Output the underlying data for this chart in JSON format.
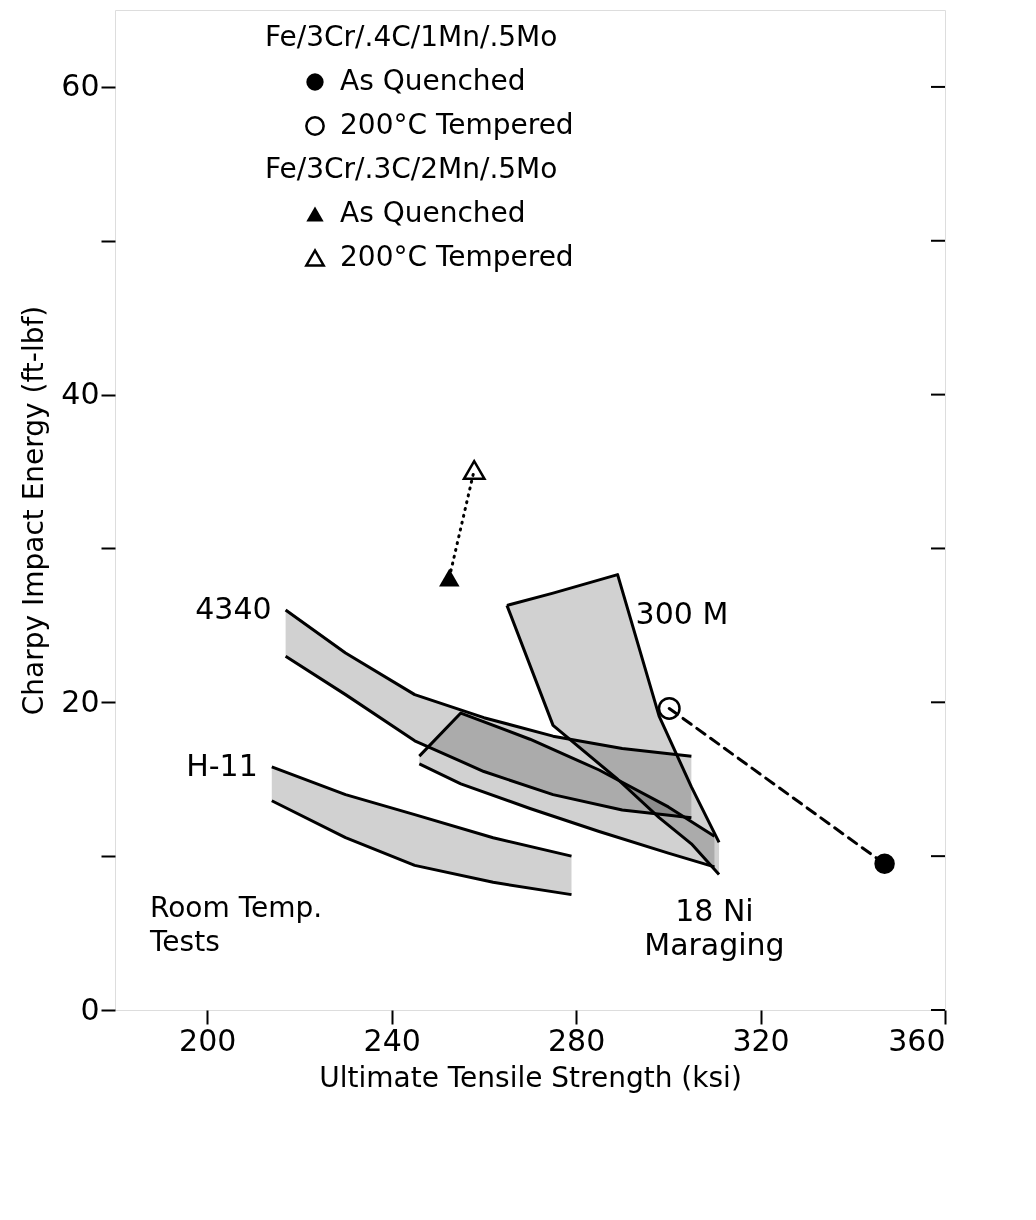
{
  "chart_data": {
    "type": "scatter",
    "xlabel": "Ultimate Tensile Strength (ksi)",
    "ylabel": "Charpy Impact Energy (ft-lbf)",
    "xlim": [
      180,
      360
    ],
    "ylim": [
      0,
      65
    ],
    "xticks": [
      200,
      240,
      280,
      320,
      360
    ],
    "yticks": [
      0,
      {
        "value": 10,
        "label": null
      },
      20,
      {
        "value": 30,
        "label": null
      },
      40,
      {
        "value": 50,
        "label": null
      },
      60
    ],
    "grid": false,
    "legend": "top",
    "annotations": [
      "Fe/3Cr/.4C/1Mn/.5Mo",
      "Fe/3Cr/.3C/2Mn/.5Mo",
      "Room Temp. Tests"
    ],
    "series": [
      {
        "name": "4340",
        "type": "line",
        "marker": "none",
        "color": "#000000",
        "x": [
          217,
          230,
          245,
          260,
          275,
          290,
          305
        ],
        "values": [
          26,
          23.2,
          20.5,
          19,
          17.8,
          17,
          16.5
        ],
        "upper": [
          26,
          23.2,
          20.5,
          19,
          17.8,
          17,
          16.5
        ],
        "lower": [
          23,
          20.5,
          17.5,
          15.5,
          14,
          13,
          12.5
        ]
      },
      {
        "name": "300 M",
        "type": "line",
        "marker": "none",
        "color": "#000000",
        "x": [
          265,
          275,
          289,
          298,
          305,
          311
        ],
        "values": [
          26.3,
          27.1,
          28.3,
          19.1,
          14.5,
          10.9
        ],
        "upper": [
          26.3,
          27.1,
          28.3,
          19.1,
          14.5,
          10.9
        ],
        "lower": [
          26.3,
          18.5,
          15,
          12.5,
          10.8,
          8.8
        ]
      },
      {
        "name": "H-11",
        "type": "line",
        "marker": "none",
        "color": "#000000",
        "x": [
          214,
          230,
          245,
          262,
          279
        ],
        "values": [
          15.8,
          14,
          12.7,
          11.2,
          10
        ],
        "upper": [
          15.8,
          14,
          12.7,
          11.2,
          10
        ],
        "lower": [
          13.6,
          11.2,
          9.4,
          8.3,
          7.5
        ]
      },
      {
        "name": "18 Ni Maraging",
        "type": "line",
        "marker": "none",
        "color": "#000000",
        "x": [
          246,
          255,
          270,
          285,
          300,
          310
        ],
        "values": [
          16.5,
          19.3,
          17.6,
          15.6,
          13.2,
          11.3
        ],
        "upper": [
          16.5,
          19.3,
          17.6,
          15.6,
          13.2,
          11.3
        ],
        "lower": [
          16,
          14.7,
          13.1,
          11.6,
          10.2,
          9.3
        ]
      },
      {
        "type": "line",
        "color": "#000000",
        "line_style": "dashed",
        "marker": "none",
        "x": [
          300.2,
          346.9
        ],
        "values": [
          19.6,
          9.5
        ]
      },
      {
        "type": "line",
        "color": "#000000",
        "line_style": "dotted",
        "marker": "none",
        "x": [
          252.5,
          257.9
        ],
        "values": [
          28.1,
          35.1
        ]
      },
      {
        "name": "As Quenched",
        "color": "#000000",
        "marker": "triangle",
        "x": [
          252.5
        ],
        "values": [
          28.1
        ]
      },
      {
        "name": "200°C Tempered",
        "color": "#000000",
        "marker": "triangle",
        "x": [
          257.9
        ],
        "values": [
          35.1
        ]
      },
      {
        "name": "As Quenched",
        "color": "#000000",
        "marker": "circle",
        "x": [
          346.9
        ],
        "values": [
          9.5
        ]
      },
      {
        "name": "200°C Tempered",
        "color": "#000000",
        "marker": "circle",
        "x": [
          300.2
        ],
        "values": [
          19.6
        ]
      }
    ]
  }
}
